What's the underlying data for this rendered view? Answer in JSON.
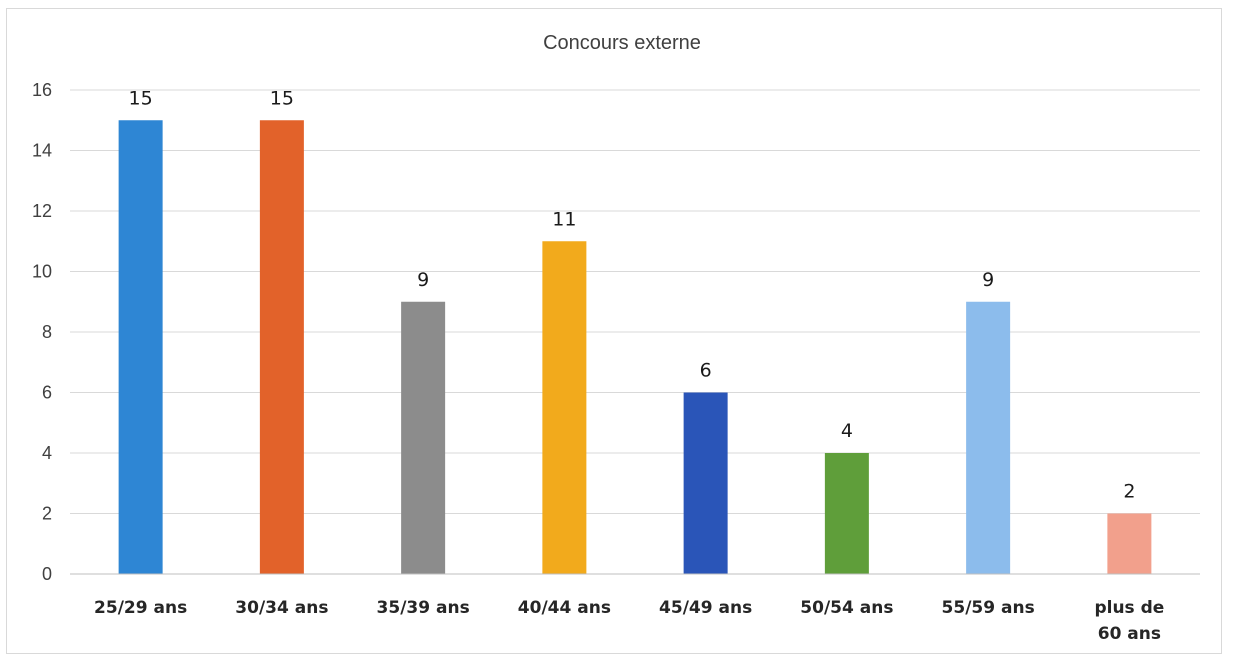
{
  "chart_data": {
    "type": "bar",
    "title": "Concours externe",
    "xlabel": "",
    "ylabel": "",
    "ylim": [
      0,
      16
    ],
    "yticks": [
      0,
      2,
      4,
      6,
      8,
      10,
      12,
      14,
      16
    ],
    "grid": true,
    "legend": "none",
    "categories": [
      [
        "25/29 ans"
      ],
      [
        "30/34 ans"
      ],
      [
        "35/39 ans"
      ],
      [
        "40/44 ans"
      ],
      [
        "45/49 ans"
      ],
      [
        "50/54 ans"
      ],
      [
        "55/59 ans"
      ],
      [
        "plus de",
        "60 ans"
      ]
    ],
    "values": [
      15,
      15,
      9,
      11,
      6,
      4,
      9,
      2
    ],
    "colors": [
      "#2e86d4",
      "#e2622a",
      "#8c8c8c",
      "#f2aa1c",
      "#2a55b8",
      "#5f9e3a",
      "#8cbcec",
      "#f2a08c"
    ]
  }
}
